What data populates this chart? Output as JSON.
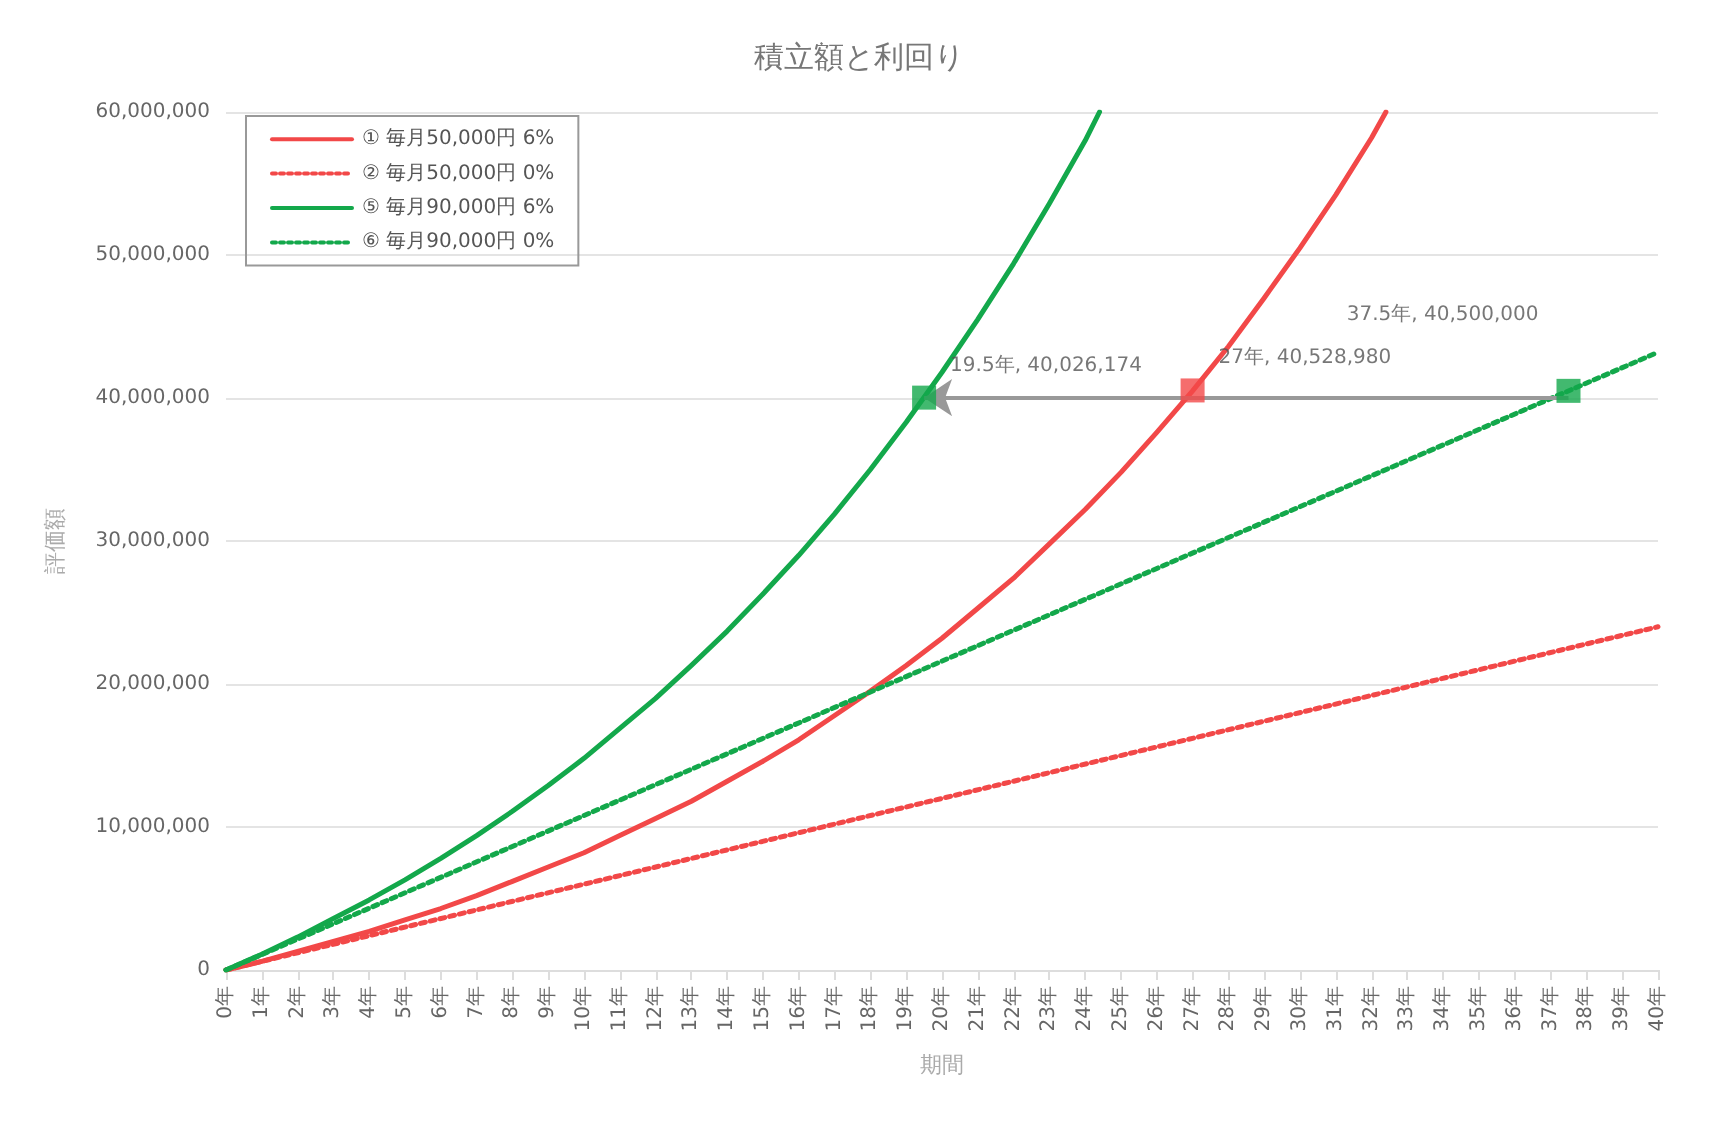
{
  "chart_data": {
    "type": "line",
    "title": "積立額と利回り",
    "xlabel": "期間",
    "ylabel": "評価額",
    "xlim": [
      0,
      40
    ],
    "ylim": [
      0,
      60000000
    ],
    "xticks": [
      {
        "value": 0,
        "label": "0年"
      },
      {
        "value": 1,
        "label": "1年"
      },
      {
        "value": 2,
        "label": "2年"
      },
      {
        "value": 3,
        "label": "3年"
      },
      {
        "value": 4,
        "label": "4年"
      },
      {
        "value": 5,
        "label": "5年"
      },
      {
        "value": 6,
        "label": "6年"
      },
      {
        "value": 7,
        "label": "7年"
      },
      {
        "value": 8,
        "label": "8年"
      },
      {
        "value": 9,
        "label": "9年"
      },
      {
        "value": 10,
        "label": "10年"
      },
      {
        "value": 11,
        "label": "11年"
      },
      {
        "value": 12,
        "label": "12年"
      },
      {
        "value": 13,
        "label": "13年"
      },
      {
        "value": 14,
        "label": "14年"
      },
      {
        "value": 15,
        "label": "15年"
      },
      {
        "value": 16,
        "label": "16年"
      },
      {
        "value": 17,
        "label": "17年"
      },
      {
        "value": 18,
        "label": "18年"
      },
      {
        "value": 19,
        "label": "19年"
      },
      {
        "value": 20,
        "label": "20年"
      },
      {
        "value": 21,
        "label": "21年"
      },
      {
        "value": 22,
        "label": "22年"
      },
      {
        "value": 23,
        "label": "23年"
      },
      {
        "value": 24,
        "label": "24年"
      },
      {
        "value": 25,
        "label": "25年"
      },
      {
        "value": 26,
        "label": "26年"
      },
      {
        "value": 27,
        "label": "27年"
      },
      {
        "value": 28,
        "label": "28年"
      },
      {
        "value": 29,
        "label": "29年"
      },
      {
        "value": 30,
        "label": "30年"
      },
      {
        "value": 31,
        "label": "31年"
      },
      {
        "value": 32,
        "label": "32年"
      },
      {
        "value": 33,
        "label": "33年"
      },
      {
        "value": 34,
        "label": "34年"
      },
      {
        "value": 35,
        "label": "35年"
      },
      {
        "value": 36,
        "label": "36年"
      },
      {
        "value": 37,
        "label": "37年"
      },
      {
        "value": 38,
        "label": "38年"
      },
      {
        "value": 39,
        "label": "39年"
      },
      {
        "value": 40,
        "label": "40年"
      }
    ],
    "yticks": [
      {
        "value": 0,
        "label": "0"
      },
      {
        "value": 10000000,
        "label": "10,000,000"
      },
      {
        "value": 20000000,
        "label": "20,000,000"
      },
      {
        "value": 30000000,
        "label": "30,000,000"
      },
      {
        "value": 40000000,
        "label": "40,000,000"
      },
      {
        "value": 50000000,
        "label": "50,000,000"
      },
      {
        "value": 60000000,
        "label": "60,000,000"
      }
    ],
    "grid": "y",
    "legend": "top left",
    "marker": "none",
    "series": [
      {
        "name": "① 毎月50,000円 6%",
        "color": "#f24848",
        "line_style": "solid",
        "x": [
          0,
          1,
          2,
          3,
          4,
          5,
          6,
          7,
          8,
          9,
          10,
          11,
          12,
          13,
          14,
          15,
          16,
          17,
          18,
          19,
          20,
          21,
          22,
          23,
          24,
          25,
          26,
          27,
          28,
          29,
          30,
          31,
          32,
          32.4
        ],
        "values": [
          0,
          600000,
          1300000,
          2000000,
          2700000,
          3500000,
          4300000,
          5200000,
          6200000,
          7200000,
          8200000,
          9400000,
          10600000,
          11800000,
          13200000,
          14600000,
          16100000,
          17800000,
          19500000,
          21300000,
          23200000,
          25300000,
          27400000,
          29800000,
          32200000,
          34800000,
          37600000,
          40500000,
          43600000,
          47000000,
          50500000,
          54200000,
          58200000,
          60000000
        ]
      },
      {
        "name": "② 毎月50,000円 0%",
        "color": "#f24848",
        "line_style": "dotted",
        "x": [
          0,
          40
        ],
        "values": [
          0,
          24000000
        ]
      },
      {
        "name": "⑤ 毎月90,000円 6%",
        "color": "#13a84b",
        "line_style": "solid",
        "x": [
          0,
          1,
          2,
          3,
          4,
          5,
          6,
          7,
          8,
          9,
          10,
          11,
          12,
          13,
          14,
          15,
          16,
          17,
          18,
          19,
          20,
          21,
          22,
          23,
          24,
          24.4
        ],
        "values": [
          0,
          1100000,
          2300000,
          3600000,
          4900000,
          6300000,
          7800000,
          9400000,
          11100000,
          12900000,
          14800000,
          16900000,
          19000000,
          21300000,
          23700000,
          26300000,
          29000000,
          31900000,
          35000000,
          38300000,
          41800000,
          45500000,
          49400000,
          53600000,
          58000000,
          60000000
        ]
      },
      {
        "name": "⑥ 毎月90,000円 0%",
        "color": "#13a84b",
        "line_style": "dotted",
        "x": [
          0,
          40
        ],
        "values": [
          0,
          43200000
        ]
      },
      {
        "type": "scatter",
        "marker": "square",
        "color": "#13a84b",
        "x": [
          19.5,
          37.5
        ],
        "values": [
          40026174,
          40500000
        ],
        "value_labels": [
          "19.5年, 40,026,174",
          "37.5年, 40,500,000"
        ]
      },
      {
        "type": "scatter",
        "marker": "square",
        "color": "#f24848",
        "x": [
          27
        ],
        "values": [
          40528980
        ],
        "value_labels": [
          "27年, 40,528,980"
        ]
      }
    ]
  }
}
